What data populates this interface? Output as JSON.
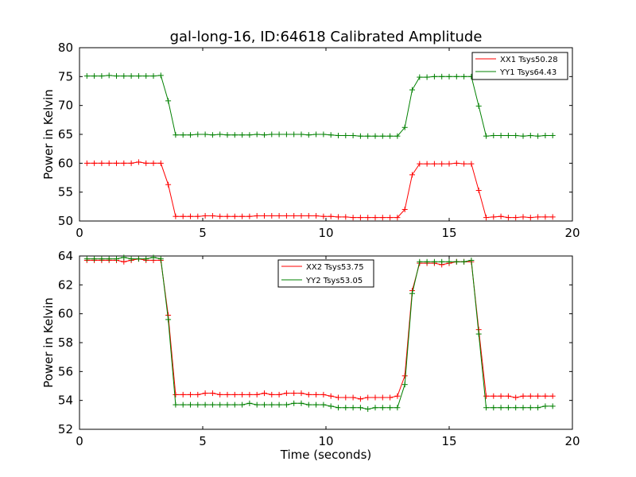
{
  "figure": {
    "title": "gal-long-16, ID:64618 Calibrated Amplitude"
  },
  "colors": {
    "red": "#ff0000",
    "green": "#008000",
    "axes": "#000000",
    "background": "#ffffff"
  },
  "chart_data": [
    {
      "type": "line",
      "title": "gal-long-16, ID:64618 Calibrated Amplitude",
      "xlabel": "",
      "ylabel": "Power in Kelvin",
      "xlim": [
        0,
        20
      ],
      "ylim": [
        50,
        80
      ],
      "xticks": [
        0,
        5,
        10,
        15,
        20
      ],
      "yticks": [
        50,
        55,
        60,
        65,
        70,
        75,
        80
      ],
      "grid": false,
      "legend_position": "top-right",
      "x": [
        0.3,
        0.6,
        0.9,
        1.2,
        1.5,
        1.8,
        2.1,
        2.4,
        2.7,
        3.0,
        3.3,
        3.6,
        3.9,
        4.2,
        4.5,
        4.8,
        5.1,
        5.4,
        5.7,
        6.0,
        6.3,
        6.6,
        6.9,
        7.2,
        7.5,
        7.8,
        8.1,
        8.4,
        8.7,
        9.0,
        9.3,
        9.6,
        9.9,
        10.2,
        10.5,
        10.8,
        11.1,
        11.4,
        11.7,
        12.0,
        12.3,
        12.6,
        12.9,
        13.2,
        13.5,
        13.8,
        14.1,
        14.4,
        14.7,
        15.0,
        15.3,
        15.6,
        15.9,
        16.2,
        16.5,
        16.8,
        17.1,
        17.4,
        17.7,
        18.0,
        18.3,
        18.6,
        18.9,
        19.2
      ],
      "series": [
        {
          "name": "XX1 Tsys50.28",
          "color": "#ff0000",
          "values": [
            60.0,
            60.0,
            60.0,
            60.0,
            60.0,
            60.0,
            60.0,
            60.2,
            60.0,
            60.0,
            60.0,
            56.3,
            50.8,
            50.8,
            50.8,
            50.8,
            50.9,
            50.9,
            50.8,
            50.8,
            50.8,
            50.8,
            50.8,
            50.9,
            50.9,
            50.9,
            50.9,
            50.9,
            50.9,
            50.9,
            50.9,
            50.9,
            50.8,
            50.8,
            50.7,
            50.7,
            50.6,
            50.6,
            50.6,
            50.6,
            50.6,
            50.6,
            50.6,
            52.0,
            58.0,
            59.9,
            59.9,
            59.9,
            59.9,
            59.9,
            60.0,
            59.9,
            59.9,
            55.3,
            50.6,
            50.7,
            50.8,
            50.6,
            50.6,
            50.7,
            50.6,
            50.7,
            50.7,
            50.7
          ]
        },
        {
          "name": "YY1 Tsys64.43",
          "color": "#008000",
          "values": [
            75.1,
            75.1,
            75.1,
            75.2,
            75.1,
            75.1,
            75.1,
            75.1,
            75.1,
            75.1,
            75.2,
            70.8,
            64.9,
            64.9,
            64.9,
            65.0,
            65.0,
            64.9,
            65.0,
            64.9,
            64.9,
            64.9,
            64.9,
            65.0,
            64.9,
            65.0,
            65.0,
            65.0,
            65.0,
            65.0,
            64.9,
            65.0,
            65.0,
            64.9,
            64.8,
            64.8,
            64.8,
            64.7,
            64.7,
            64.7,
            64.7,
            64.7,
            64.7,
            66.2,
            72.7,
            74.9,
            74.9,
            75.0,
            75.0,
            75.0,
            75.0,
            75.0,
            75.0,
            69.9,
            64.7,
            64.8,
            64.8,
            64.8,
            64.8,
            64.7,
            64.8,
            64.7,
            64.8,
            64.8
          ]
        }
      ]
    },
    {
      "type": "line",
      "title": "",
      "xlabel": "Time (seconds)",
      "ylabel": "Power in Kelvin",
      "xlim": [
        0,
        20
      ],
      "ylim": [
        52,
        64
      ],
      "xticks": [
        0,
        5,
        10,
        15,
        20
      ],
      "yticks": [
        52,
        54,
        56,
        58,
        60,
        62,
        64
      ],
      "grid": false,
      "legend_position": "top-center",
      "x": [
        0.3,
        0.6,
        0.9,
        1.2,
        1.5,
        1.8,
        2.1,
        2.4,
        2.7,
        3.0,
        3.3,
        3.6,
        3.9,
        4.2,
        4.5,
        4.8,
        5.1,
        5.4,
        5.7,
        6.0,
        6.3,
        6.6,
        6.9,
        7.2,
        7.5,
        7.8,
        8.1,
        8.4,
        8.7,
        9.0,
        9.3,
        9.6,
        9.9,
        10.2,
        10.5,
        10.8,
        11.1,
        11.4,
        11.7,
        12.0,
        12.3,
        12.6,
        12.9,
        13.2,
        13.5,
        13.8,
        14.1,
        14.4,
        14.7,
        15.0,
        15.3,
        15.6,
        15.9,
        16.2,
        16.5,
        16.8,
        17.1,
        17.4,
        17.7,
        18.0,
        18.3,
        18.6,
        18.9,
        19.2
      ],
      "series": [
        {
          "name": "XX2 Tsys53.75",
          "color": "#ff0000",
          "values": [
            63.7,
            63.7,
            63.7,
            63.7,
            63.7,
            63.6,
            63.7,
            63.8,
            63.7,
            63.7,
            63.7,
            59.9,
            54.4,
            54.4,
            54.4,
            54.4,
            54.5,
            54.5,
            54.4,
            54.4,
            54.4,
            54.4,
            54.4,
            54.4,
            54.5,
            54.4,
            54.4,
            54.5,
            54.5,
            54.5,
            54.4,
            54.4,
            54.4,
            54.3,
            54.2,
            54.2,
            54.2,
            54.1,
            54.2,
            54.2,
            54.2,
            54.2,
            54.3,
            55.7,
            61.6,
            63.5,
            63.5,
            63.5,
            63.4,
            63.5,
            63.6,
            63.6,
            63.6,
            58.9,
            54.3,
            54.3,
            54.3,
            54.3,
            54.2,
            54.3,
            54.3,
            54.3,
            54.3,
            54.3
          ]
        },
        {
          "name": "YY2 Tsys53.05",
          "color": "#008000",
          "values": [
            63.8,
            63.8,
            63.8,
            63.8,
            63.8,
            63.9,
            63.8,
            63.8,
            63.8,
            63.9,
            63.8,
            59.6,
            53.7,
            53.7,
            53.7,
            53.7,
            53.7,
            53.7,
            53.7,
            53.7,
            53.7,
            53.7,
            53.8,
            53.7,
            53.7,
            53.7,
            53.7,
            53.7,
            53.8,
            53.8,
            53.7,
            53.7,
            53.7,
            53.6,
            53.5,
            53.5,
            53.5,
            53.5,
            53.4,
            53.5,
            53.5,
            53.5,
            53.5,
            55.1,
            61.4,
            63.6,
            63.6,
            63.6,
            63.6,
            63.6,
            63.6,
            63.6,
            63.7,
            58.6,
            53.5,
            53.5,
            53.5,
            53.5,
            53.5,
            53.5,
            53.5,
            53.5,
            53.6,
            53.6
          ]
        }
      ]
    }
  ]
}
